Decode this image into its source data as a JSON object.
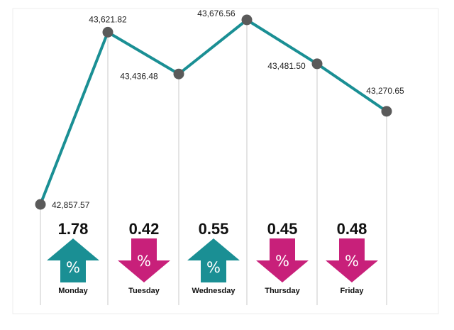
{
  "chart_data": {
    "type": "line",
    "title": "",
    "xlabel": "",
    "ylabel": "",
    "grid": false,
    "categories": [
      "Monday",
      "Tuesday",
      "Wednesday",
      "Thursday",
      "Friday"
    ],
    "points": [
      {
        "label": "42,857.57",
        "value": 42857.57
      },
      {
        "label": "43,621.82",
        "value": 43621.82
      },
      {
        "label": "43,436.48",
        "value": 43436.48
      },
      {
        "label": "43,676.56",
        "value": 43676.56
      },
      {
        "label": "43,481.50",
        "value": 43481.5
      },
      {
        "label": "43,270.65",
        "value": 43270.65
      }
    ],
    "daily_changes": [
      {
        "day": "Monday",
        "change": "1.78",
        "direction": "up",
        "symbol": "%"
      },
      {
        "day": "Tuesday",
        "change": "0.42",
        "direction": "down",
        "symbol": "%"
      },
      {
        "day": "Wednesday",
        "change": "0.55",
        "direction": "up",
        "symbol": "%"
      },
      {
        "day": "Thursday",
        "change": "0.45",
        "direction": "down",
        "symbol": "%"
      },
      {
        "day": "Friday",
        "change": "0.48",
        "direction": "down",
        "symbol": "%"
      }
    ],
    "colors": {
      "line": "#1a8f94",
      "marker": "#5a5a5a",
      "up": "#1a8f94",
      "down": "#c8207a",
      "guide": "#c9c9c9"
    }
  }
}
